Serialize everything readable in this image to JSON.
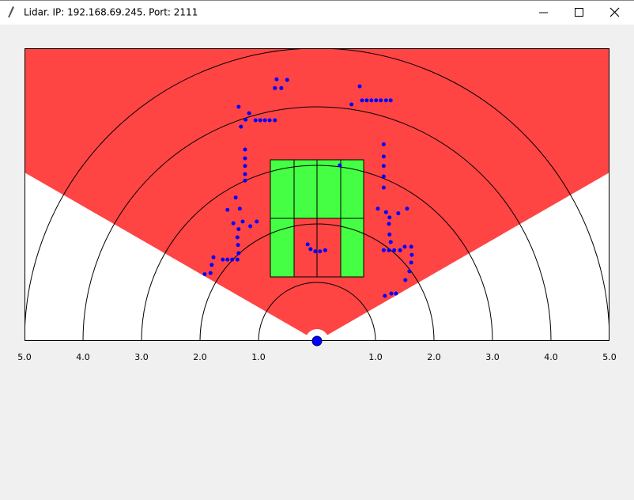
{
  "window": {
    "title": "Lidar. IP: 192.168.69.245. Port: 2111"
  },
  "axis": {
    "ticks": [
      {
        "value": -5,
        "label": "5.0"
      },
      {
        "value": -4,
        "label": "4.0"
      },
      {
        "value": -3,
        "label": "3.0"
      },
      {
        "value": -2,
        "label": "2.0"
      },
      {
        "value": -1,
        "label": "1.0"
      },
      {
        "value": 1,
        "label": "1.0"
      },
      {
        "value": 2,
        "label": "2.0"
      },
      {
        "value": 3,
        "label": "3.0"
      },
      {
        "value": 4,
        "label": "4.0"
      },
      {
        "value": 5,
        "label": "5.0"
      }
    ]
  },
  "scan_points": [
    [
      -0.69,
      4.47
    ],
    [
      -0.72,
      4.32
    ],
    [
      -0.61,
      4.32
    ],
    [
      -0.51,
      4.46
    ],
    [
      0.73,
      4.35
    ],
    [
      0.59,
      4.04
    ],
    [
      0.77,
      4.11
    ],
    [
      0.85,
      4.11
    ],
    [
      0.93,
      4.11
    ],
    [
      1.01,
      4.11
    ],
    [
      1.09,
      4.11
    ],
    [
      1.18,
      4.11
    ],
    [
      1.26,
      4.11
    ],
    [
      -1.34,
      4.0
    ],
    [
      -1.16,
      3.89
    ],
    [
      -1.22,
      3.78
    ],
    [
      -1.05,
      3.77
    ],
    [
      -0.97,
      3.77
    ],
    [
      -0.89,
      3.77
    ],
    [
      -0.81,
      3.77
    ],
    [
      -0.72,
      3.77
    ],
    [
      -1.3,
      3.66
    ],
    [
      -1.23,
      3.27
    ],
    [
      -1.23,
      3.12
    ],
    [
      -1.23,
      2.99
    ],
    [
      -1.23,
      2.85
    ],
    [
      -1.23,
      2.74
    ],
    [
      -1.39,
      2.45
    ],
    [
      -1.53,
      2.24
    ],
    [
      -1.32,
      2.26
    ],
    [
      -1.43,
      2.01
    ],
    [
      -1.27,
      2.04
    ],
    [
      -1.14,
      1.96
    ],
    [
      -1.03,
      2.04
    ],
    [
      -1.34,
      1.91
    ],
    [
      -1.36,
      1.77
    ],
    [
      -1.35,
      1.64
    ],
    [
      -1.34,
      1.5
    ],
    [
      -1.61,
      1.39
    ],
    [
      -1.53,
      1.39
    ],
    [
      -1.45,
      1.39
    ],
    [
      -1.36,
      1.39
    ],
    [
      -1.77,
      1.43
    ],
    [
      -1.8,
      1.3
    ],
    [
      -1.82,
      1.16
    ],
    [
      -1.92,
      1.14
    ],
    [
      1.14,
      3.36
    ],
    [
      1.14,
      3.15
    ],
    [
      1.14,
      2.99
    ],
    [
      1.14,
      2.81
    ],
    [
      1.14,
      2.62
    ],
    [
      0.39,
      3.0
    ],
    [
      1.04,
      2.26
    ],
    [
      1.18,
      2.2
    ],
    [
      1.24,
      2.11
    ],
    [
      1.39,
      2.18
    ],
    [
      1.54,
      2.26
    ],
    [
      1.23,
      2.0
    ],
    [
      1.24,
      1.82
    ],
    [
      1.26,
      1.69
    ],
    [
      1.14,
      1.55
    ],
    [
      1.23,
      1.55
    ],
    [
      1.32,
      1.55
    ],
    [
      1.42,
      1.55
    ],
    [
      1.5,
      1.61
    ],
    [
      1.61,
      1.61
    ],
    [
      1.62,
      1.47
    ],
    [
      1.61,
      1.34
    ],
    [
      1.58,
      1.19
    ],
    [
      1.51,
      1.04
    ],
    [
      1.16,
      0.77
    ],
    [
      1.27,
      0.81
    ],
    [
      1.35,
      0.81
    ],
    [
      -0.16,
      1.65
    ],
    [
      -0.11,
      1.57
    ],
    [
      -0.03,
      1.53
    ],
    [
      0.05,
      1.53
    ],
    [
      0.14,
      1.55
    ]
  ]
}
